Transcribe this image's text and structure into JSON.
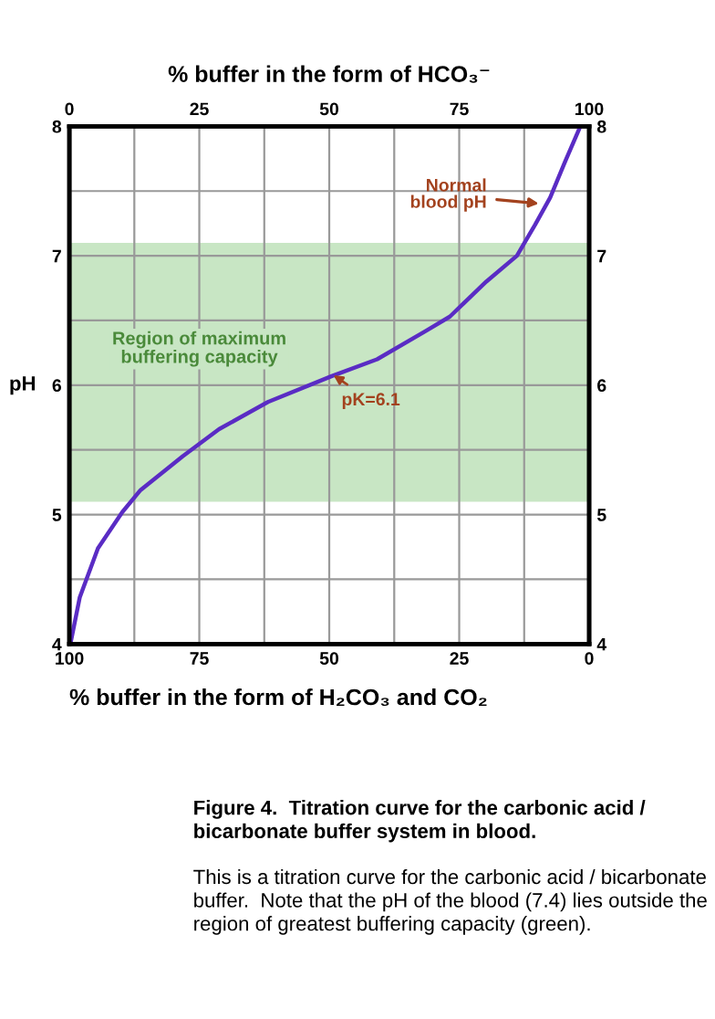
{
  "chart_data": {
    "type": "line",
    "x2label": "% buffer in the form of HCO₃⁻",
    "xlabel": "% buffer in the form of H₂CO₃ and CO₂",
    "ylabel": "pH",
    "series": [
      {
        "color": "#5a2cc4",
        "x": [
          99.8,
          98,
          94.5,
          89.8,
          86.3,
          78.2,
          71.2,
          61.8,
          49.5,
          40.8,
          31.4,
          26.8,
          19.8,
          13.9,
          10.4,
          7.5,
          4.6,
          1.7
        ],
        "values": [
          4.0,
          4.36,
          4.74,
          5.02,
          5.19,
          5.45,
          5.66,
          5.87,
          6.07,
          6.2,
          6.42,
          6.53,
          6.8,
          7.0,
          7.24,
          7.45,
          7.73,
          8.0
        ]
      }
    ],
    "xlim": [
      100,
      0
    ],
    "xticks": [
      100,
      {
        "value": 87.5,
        "label": null
      },
      75,
      {
        "value": 62.5,
        "label": null
      },
      50,
      {
        "value": 37.5,
        "label": null
      },
      25,
      {
        "value": 12.5,
        "label": null
      },
      0
    ],
    "x2lim": [
      0,
      100
    ],
    "x2ticks": [
      0,
      25,
      50,
      75,
      100
    ],
    "ylim": [
      4,
      8
    ],
    "yticks": [
      4,
      {
        "value": 4.5,
        "label": null
      },
      5,
      {
        "value": 5.5,
        "label": null
      },
      6,
      {
        "value": 6.5,
        "label": null
      },
      7,
      {
        "value": 7.5,
        "label": null
      },
      8
    ],
    "y2lim": [
      4,
      8
    ],
    "y2ticks": [
      4,
      5,
      6,
      7,
      8
    ],
    "grid": true,
    "bands": [
      {
        "axis": "y",
        "from": 5.1,
        "to": 7.1,
        "label": "Region of maximum buffering capacity",
        "color": "#c8e6c4"
      }
    ],
    "annotations": [
      {
        "text": "Normal blood pH",
        "x": 8.7,
        "y": 7.4
      },
      {
        "text": "pK=6.1",
        "x": 50,
        "y": 6.1
      },
      "Figure 4.  Titration curve for the carbonic acid / bicarbonate buffer system in blood.",
      "This is a titration curve for the carbonic acid / bicarbonate buffer.  Note that the pH of the blood (7.4) lies outside the region of greatest buffering capacity (green)."
    ]
  }
}
